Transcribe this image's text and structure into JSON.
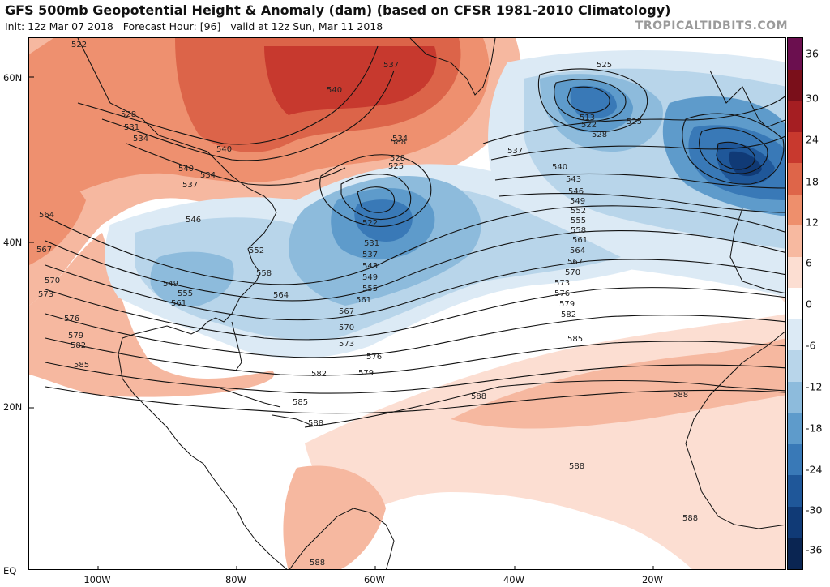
{
  "header": {
    "title": "GFS 500mb Geopotential Height & Anomaly (dam) (based on CFSR 1981-2010 Climatology)",
    "init": "Init: 12z Mar 07 2018",
    "forecast_hour": "Forecast Hour: [96]",
    "valid": "valid at 12z Sun, Mar 11 2018",
    "watermark": "TROPICALTIDBITS.COM"
  },
  "axes": {
    "lat_labels": [
      "60N",
      "40N",
      "20N",
      "EQ"
    ],
    "lon_labels": [
      "100W",
      "80W",
      "60W",
      "40W",
      "20W"
    ]
  },
  "colorbar": {
    "ticks": [
      "36",
      "30",
      "24",
      "18",
      "12",
      "6",
      "0",
      "-6",
      "-12",
      "-18",
      "-24",
      "-30",
      "-36"
    ],
    "colors": [
      "#6b0f4f",
      "#7a0f1a",
      "#a51e22",
      "#c8392e",
      "#de6549",
      "#ee8f6c",
      "#f7b9a0",
      "#fcded2",
      "#ffffff",
      "#dceaf5",
      "#b8d5ea",
      "#8dbbdc",
      "#5e9bcb",
      "#3979b7",
      "#1f5799",
      "#103a76",
      "#0a2552"
    ]
  },
  "contour_labels": [
    "522",
    "528",
    "531",
    "534",
    "537",
    "540",
    "546",
    "564",
    "567",
    "570",
    "573",
    "576",
    "579",
    "582",
    "585",
    "588",
    "525",
    "513",
    "522",
    "528",
    "525",
    "537",
    "540",
    "543",
    "546",
    "549",
    "552",
    "555",
    "558",
    "561",
    "564",
    "567",
    "570",
    "573",
    "576",
    "579",
    "582",
    "585",
    "588",
    "534",
    "528",
    "525",
    "522",
    "531",
    "537",
    "543",
    "549",
    "555",
    "561",
    "564",
    "567",
    "570",
    "573",
    "576",
    "579",
    "582",
    "585",
    "588",
    "588",
    "588",
    "588",
    "549",
    "555",
    "561",
    "552",
    "558",
    "540",
    "537",
    "534",
    "540",
    "588"
  ]
}
